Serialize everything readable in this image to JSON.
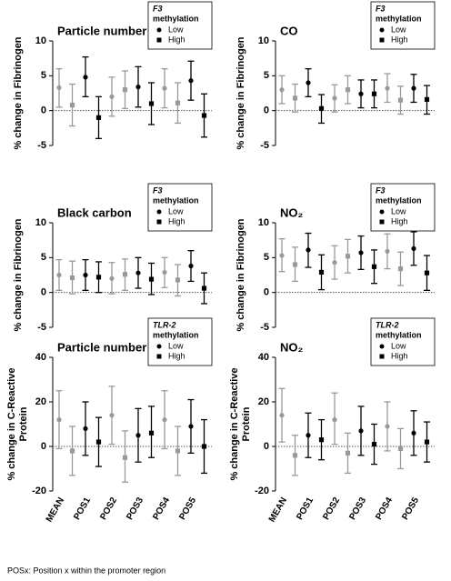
{
  "chart_data": [
    {
      "type": "errorbar",
      "title": "Particle number",
      "ylabel": [
        "% change in Fibrinogen"
      ],
      "legend_title": {
        "gene": "F3",
        "text": "methylation"
      },
      "category_colors": [
        "#999999",
        "#000000",
        "#999999",
        "#000000",
        "#999999",
        "#000000"
      ],
      "ylim": [
        -5,
        10
      ],
      "yticks": [
        -5,
        0,
        5,
        10
      ],
      "series": [
        {
          "name": "Low",
          "marker": "circle",
          "values": [
            3.3,
            4.8,
            2,
            3.4,
            3.2,
            4.3
          ],
          "ci_low": [
            0.5,
            2,
            -0.8,
            0.5,
            0.4,
            1.5
          ],
          "ci_high": [
            6,
            7.7,
            4.8,
            6.3,
            6,
            7.1
          ]
        },
        {
          "name": "High",
          "marker": "square",
          "values": [
            0.8,
            -1,
            3,
            1,
            1.1,
            -0.7
          ],
          "ci_low": [
            -2.2,
            -4,
            0.3,
            -2,
            -1.8,
            -3.8
          ],
          "ci_high": [
            3.8,
            2,
            5.7,
            4,
            4,
            2.4
          ]
        }
      ]
    },
    {
      "type": "errorbar",
      "title": "CO",
      "ylabel": [
        "% change in Fibrinogen"
      ],
      "legend_title": {
        "gene": "F3",
        "text": "methylation"
      },
      "category_colors": [
        "#999999",
        "#000000",
        "#999999",
        "#000000",
        "#999999",
        "#000000"
      ],
      "ylim": [
        -5,
        10
      ],
      "yticks": [
        -5,
        0,
        5,
        10
      ],
      "series": [
        {
          "name": "Low",
          "marker": "circle",
          "values": [
            3,
            4,
            1.8,
            2.4,
            3.2,
            3.2
          ],
          "ci_low": [
            1,
            2,
            -0.2,
            0.4,
            1.2,
            1.2
          ],
          "ci_high": [
            5,
            6,
            3.7,
            4.4,
            5.3,
            5.2
          ]
        },
        {
          "name": "High",
          "marker": "square",
          "values": [
            1.8,
            0.3,
            3,
            2.4,
            1.5,
            1.6
          ],
          "ci_low": [
            -0.2,
            -1.8,
            1,
            0.4,
            -0.5,
            -0.5
          ],
          "ci_high": [
            3.8,
            2.3,
            5,
            4.4,
            3.5,
            3.6
          ]
        }
      ]
    },
    {
      "type": "errorbar",
      "title": "Black carbon",
      "ylabel": [
        "% change in Fibrinogen"
      ],
      "legend_title": {
        "gene": "F3",
        "text": "methylation"
      },
      "category_colors": [
        "#999999",
        "#000000",
        "#999999",
        "#000000",
        "#999999",
        "#000000"
      ],
      "ylim": [
        -5,
        10
      ],
      "yticks": [
        -5,
        0,
        5,
        10
      ],
      "series": [
        {
          "name": "Low",
          "marker": "circle",
          "values": [
            2.5,
            2.5,
            2,
            2.8,
            2.9,
            3.8
          ],
          "ci_low": [
            0.3,
            0.3,
            -0.2,
            0.6,
            0.7,
            1.6
          ],
          "ci_high": [
            4.7,
            4.7,
            4.3,
            5,
            5,
            6
          ]
        },
        {
          "name": "High",
          "marker": "square",
          "values": [
            2.1,
            2.2,
            2.6,
            1.9,
            1.8,
            0.6
          ],
          "ci_low": [
            -0.2,
            0,
            0.3,
            -0.3,
            -0.5,
            -1.6
          ],
          "ci_high": [
            4.5,
            4.4,
            4.8,
            4.2,
            4,
            2.8
          ]
        }
      ]
    },
    {
      "type": "errorbar",
      "title": "NO₂",
      "ylabel": [
        "% change in Fibrinogen"
      ],
      "legend_title": {
        "gene": "F3",
        "text": "methylation"
      },
      "category_colors": [
        "#999999",
        "#000000",
        "#999999",
        "#000000",
        "#999999",
        "#000000"
      ],
      "ylim": [
        -5,
        10
      ],
      "yticks": [
        -5,
        0,
        5,
        10
      ],
      "series": [
        {
          "name": "Low",
          "marker": "circle",
          "values": [
            5.3,
            6.1,
            4.3,
            5.7,
            5.9,
            6.3
          ],
          "ci_low": [
            3,
            3.6,
            1.9,
            3.3,
            3.4,
            3.9
          ],
          "ci_high": [
            7.7,
            8.5,
            6.7,
            8.1,
            8.4,
            8.7
          ]
        },
        {
          "name": "High",
          "marker": "square",
          "values": [
            4,
            2.9,
            5.2,
            3.7,
            3.4,
            2.8
          ],
          "ci_low": [
            1.6,
            0.4,
            2.8,
            1.3,
            1,
            0.3
          ],
          "ci_high": [
            6.5,
            5.4,
            7.6,
            6.1,
            5.8,
            5.3
          ]
        }
      ]
    },
    {
      "type": "errorbar",
      "title": "Particle number",
      "ylabel": [
        "% change in C-Reactive",
        "Protein"
      ],
      "legend_title": {
        "gene": "TLR-2",
        "text": "methylation"
      },
      "categories": [
        "MEAN",
        "POS1",
        "POS2",
        "POS3",
        "POS4",
        "POS5"
      ],
      "category_colors": [
        "#999999",
        "#000000",
        "#999999",
        "#000000",
        "#999999",
        "#000000"
      ],
      "ylim": [
        -20,
        40
      ],
      "yticks": [
        -20,
        0,
        20,
        40
      ],
      "series": [
        {
          "name": "Low",
          "marker": "circle",
          "values": [
            12,
            8,
            14,
            5,
            12,
            9
          ],
          "ci_low": [
            -1,
            -4,
            1,
            -7,
            -1,
            -3
          ],
          "ci_high": [
            25,
            20,
            27,
            17,
            25,
            21
          ]
        },
        {
          "name": "High",
          "marker": "square",
          "values": [
            -2,
            2,
            -5,
            6,
            -2,
            0
          ],
          "ci_low": [
            -13,
            -9,
            -16,
            -5,
            -13,
            -12
          ],
          "ci_high": [
            9,
            13,
            7,
            18,
            9,
            12
          ]
        }
      ]
    },
    {
      "type": "errorbar",
      "title": "NO₂",
      "ylabel": [
        "% change in C-Reactive",
        "Protein"
      ],
      "legend_title": {
        "gene": "TLR-2",
        "text": "methylation"
      },
      "categories": [
        "MEAN",
        "POS1",
        "POS2",
        "POS3",
        "POS4",
        "POS5"
      ],
      "category_colors": [
        "#999999",
        "#000000",
        "#999999",
        "#000000",
        "#999999",
        "#000000"
      ],
      "ylim": [
        -20,
        40
      ],
      "yticks": [
        -20,
        0,
        20,
        40
      ],
      "series": [
        {
          "name": "Low",
          "marker": "circle",
          "values": [
            14,
            5,
            12,
            7,
            9,
            6
          ],
          "ci_low": [
            2,
            -5,
            1,
            -4,
            -2,
            -4
          ],
          "ci_high": [
            26,
            15,
            24,
            18,
            20,
            16
          ]
        },
        {
          "name": "High",
          "marker": "square",
          "values": [
            -4,
            3,
            -3,
            1,
            -1,
            2
          ],
          "ci_low": [
            -13,
            -6,
            -12,
            -8,
            -10,
            -7
          ],
          "ci_high": [
            5,
            12,
            6,
            10,
            8,
            11
          ]
        }
      ]
    }
  ],
  "footnote": "POSx: Position x within the promoter region"
}
